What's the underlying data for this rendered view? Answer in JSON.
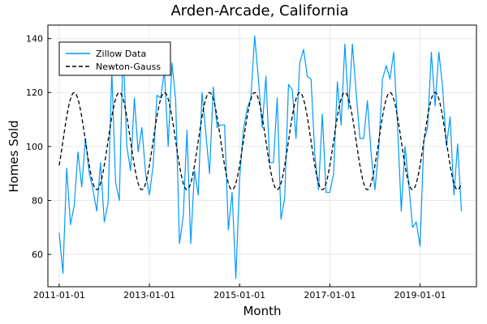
{
  "chart_data": {
    "type": "line",
    "title": "Arden-Arcade, California",
    "xlabel": "Month",
    "ylabel": "Homes Sold",
    "x_start": "2011-01-01",
    "x_end": "2019-12-01",
    "xlim": [
      "2010-10-01",
      "2020-04-01"
    ],
    "ylim": [
      48,
      145
    ],
    "x_ticks": [
      "2011-01-01",
      "2013-01-01",
      "2015-01-01",
      "2017-01-01",
      "2019-01-01"
    ],
    "y_ticks": [
      60,
      80,
      100,
      120,
      140
    ],
    "grid": true,
    "legend_position": "top-left",
    "series": [
      {
        "name": "Zillow Data",
        "color": "#009af9",
        "style": "solid",
        "values": [
          68,
          53,
          92,
          71,
          78,
          98,
          85,
          103,
          90,
          84,
          76,
          94,
          72,
          79,
          128,
          87,
          80,
          137,
          100,
          91,
          118,
          98,
          107,
          90,
          82,
          93,
          119,
          118,
          128,
          100,
          131,
          117,
          64,
          74,
          106,
          64,
          91,
          82,
          120,
          105,
          90,
          122,
          107,
          108,
          108,
          69,
          83,
          51,
          88,
          106,
          114,
          118,
          141,
          125,
          107,
          126,
          94,
          94,
          118,
          73,
          81,
          123,
          121,
          103,
          131,
          136,
          126,
          125,
          97,
          84,
          112,
          83,
          83,
          90,
          124,
          108,
          138,
          114,
          138,
          120,
          103,
          103,
          117,
          97,
          84,
          99,
          125,
          130,
          125,
          135,
          108,
          76,
          100,
          86,
          70,
          72,
          63,
          102,
          107,
          135,
          115,
          135,
          122,
          100,
          111,
          82,
          101,
          76
        ]
      },
      {
        "name": "Newton-Gauss",
        "color": "#000000",
        "style": "dashed",
        "model": {
          "type": "sinusoid",
          "mean": 102,
          "amplitude": 18,
          "period_months": 12,
          "peak_month_offset": 4
        }
      }
    ]
  }
}
